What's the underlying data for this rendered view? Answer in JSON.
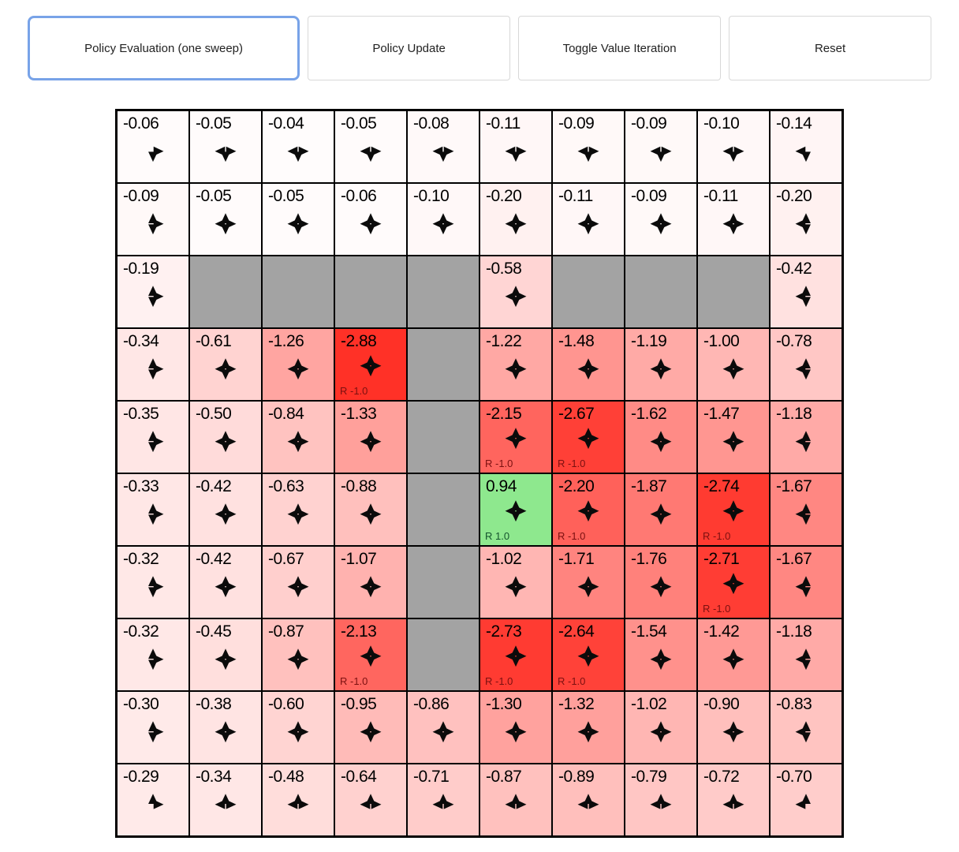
{
  "toolbar": {
    "buttons": [
      {
        "label": "Policy Evaluation (one sweep)",
        "active": true
      },
      {
        "label": "Policy Update",
        "active": false
      },
      {
        "label": "Toggle Value Iteration",
        "active": false
      },
      {
        "label": "Reset",
        "active": false
      }
    ]
  },
  "colors": {
    "active_button_border": "#78a3e8",
    "button_border": "#d8d8d8",
    "wall_bg": "#a3a3a3",
    "goal_bg": "#8ee78e",
    "penalty_bg": "#ff2317",
    "grid_line": "#000000",
    "negative_reward_text": "#7a1010",
    "positive_reward_text": "#14532d"
  },
  "grid": {
    "rows": 10,
    "cols": 10,
    "cells": [
      [
        {
          "v": "-0.06",
          "d": "DR"
        },
        {
          "v": "-0.05",
          "d": "DLR"
        },
        {
          "v": "-0.04",
          "d": "DLR"
        },
        {
          "v": "-0.05",
          "d": "DLR"
        },
        {
          "v": "-0.08",
          "d": "DLR"
        },
        {
          "v": "-0.11",
          "d": "DLR"
        },
        {
          "v": "-0.09",
          "d": "DLR"
        },
        {
          "v": "-0.09",
          "d": "DLR"
        },
        {
          "v": "-0.10",
          "d": "DLR"
        },
        {
          "v": "-0.14",
          "d": "DL"
        }
      ],
      [
        {
          "v": "-0.09",
          "d": "UDR"
        },
        {
          "v": "-0.05",
          "d": "UDLR"
        },
        {
          "v": "-0.05",
          "d": "UDLR"
        },
        {
          "v": "-0.06",
          "d": "UDLR"
        },
        {
          "v": "-0.10",
          "d": "UDLR"
        },
        {
          "v": "-0.20",
          "d": "UDLR"
        },
        {
          "v": "-0.11",
          "d": "UDLR"
        },
        {
          "v": "-0.09",
          "d": "UDLR"
        },
        {
          "v": "-0.11",
          "d": "UDLR"
        },
        {
          "v": "-0.20",
          "d": "UDL"
        }
      ],
      [
        {
          "v": "-0.19",
          "d": "UDR"
        },
        {
          "t": "wall"
        },
        {
          "t": "wall"
        },
        {
          "t": "wall"
        },
        {
          "t": "wall"
        },
        {
          "v": "-0.58",
          "d": "UDLR"
        },
        {
          "t": "wall"
        },
        {
          "t": "wall"
        },
        {
          "t": "wall"
        },
        {
          "v": "-0.42",
          "d": "UDL"
        }
      ],
      [
        {
          "v": "-0.34",
          "d": "UDR"
        },
        {
          "v": "-0.61",
          "d": "UDLR"
        },
        {
          "v": "-1.26",
          "d": "UDLR"
        },
        {
          "v": "-2.88",
          "d": "UDLR",
          "r": "R -1.0"
        },
        {
          "t": "wall"
        },
        {
          "v": "-1.22",
          "d": "UDLR"
        },
        {
          "v": "-1.48",
          "d": "UDLR"
        },
        {
          "v": "-1.19",
          "d": "UDLR"
        },
        {
          "v": "-1.00",
          "d": "UDLR"
        },
        {
          "v": "-0.78",
          "d": "UDL"
        }
      ],
      [
        {
          "v": "-0.35",
          "d": "UDR"
        },
        {
          "v": "-0.50",
          "d": "UDLR"
        },
        {
          "v": "-0.84",
          "d": "UDLR"
        },
        {
          "v": "-1.33",
          "d": "UDLR"
        },
        {
          "t": "wall"
        },
        {
          "v": "-2.15",
          "d": "UDLR",
          "r": "R -1.0"
        },
        {
          "v": "-2.67",
          "d": "UDLR",
          "r": "R -1.0"
        },
        {
          "v": "-1.62",
          "d": "UDLR"
        },
        {
          "v": "-1.47",
          "d": "UDLR"
        },
        {
          "v": "-1.18",
          "d": "UDL"
        }
      ],
      [
        {
          "v": "-0.33",
          "d": "UDR"
        },
        {
          "v": "-0.42",
          "d": "UDLR"
        },
        {
          "v": "-0.63",
          "d": "UDLR"
        },
        {
          "v": "-0.88",
          "d": "UDLR"
        },
        {
          "t": "wall"
        },
        {
          "v": "0.94",
          "d": "UDLR",
          "r": "R 1.0"
        },
        {
          "v": "-2.20",
          "d": "UDLR",
          "r": "R -1.0"
        },
        {
          "v": "-1.87",
          "d": "UDLR"
        },
        {
          "v": "-2.74",
          "d": "UDLR",
          "r": "R -1.0"
        },
        {
          "v": "-1.67",
          "d": "UDL"
        }
      ],
      [
        {
          "v": "-0.32",
          "d": "UDR"
        },
        {
          "v": "-0.42",
          "d": "UDLR"
        },
        {
          "v": "-0.67",
          "d": "UDLR"
        },
        {
          "v": "-1.07",
          "d": "UDLR"
        },
        {
          "t": "wall"
        },
        {
          "v": "-1.02",
          "d": "UDLR"
        },
        {
          "v": "-1.71",
          "d": "UDLR"
        },
        {
          "v": "-1.76",
          "d": "UDLR"
        },
        {
          "v": "-2.71",
          "d": "UDLR",
          "r": "R -1.0"
        },
        {
          "v": "-1.67",
          "d": "UDL"
        }
      ],
      [
        {
          "v": "-0.32",
          "d": "UDR"
        },
        {
          "v": "-0.45",
          "d": "UDLR"
        },
        {
          "v": "-0.87",
          "d": "UDLR"
        },
        {
          "v": "-2.13",
          "d": "UDLR",
          "r": "R -1.0"
        },
        {
          "t": "wall"
        },
        {
          "v": "-2.73",
          "d": "UDLR",
          "r": "R -1.0"
        },
        {
          "v": "-2.64",
          "d": "UDLR",
          "r": "R -1.0"
        },
        {
          "v": "-1.54",
          "d": "UDLR"
        },
        {
          "v": "-1.42",
          "d": "UDLR"
        },
        {
          "v": "-1.18",
          "d": "UDL"
        }
      ],
      [
        {
          "v": "-0.30",
          "d": "UDR"
        },
        {
          "v": "-0.38",
          "d": "UDLR"
        },
        {
          "v": "-0.60",
          "d": "UDLR"
        },
        {
          "v": "-0.95",
          "d": "UDLR"
        },
        {
          "v": "-0.86",
          "d": "UDLR"
        },
        {
          "v": "-1.30",
          "d": "UDLR"
        },
        {
          "v": "-1.32",
          "d": "UDLR"
        },
        {
          "v": "-1.02",
          "d": "UDLR"
        },
        {
          "v": "-0.90",
          "d": "UDLR"
        },
        {
          "v": "-0.83",
          "d": "UDL"
        }
      ],
      [
        {
          "v": "-0.29",
          "d": "UR"
        },
        {
          "v": "-0.34",
          "d": "ULR"
        },
        {
          "v": "-0.48",
          "d": "ULR"
        },
        {
          "v": "-0.64",
          "d": "ULR"
        },
        {
          "v": "-0.71",
          "d": "ULR"
        },
        {
          "v": "-0.87",
          "d": "ULR"
        },
        {
          "v": "-0.89",
          "d": "ULR"
        },
        {
          "v": "-0.79",
          "d": "ULR"
        },
        {
          "v": "-0.72",
          "d": "ULR"
        },
        {
          "v": "-0.70",
          "d": "UL"
        }
      ]
    ]
  }
}
